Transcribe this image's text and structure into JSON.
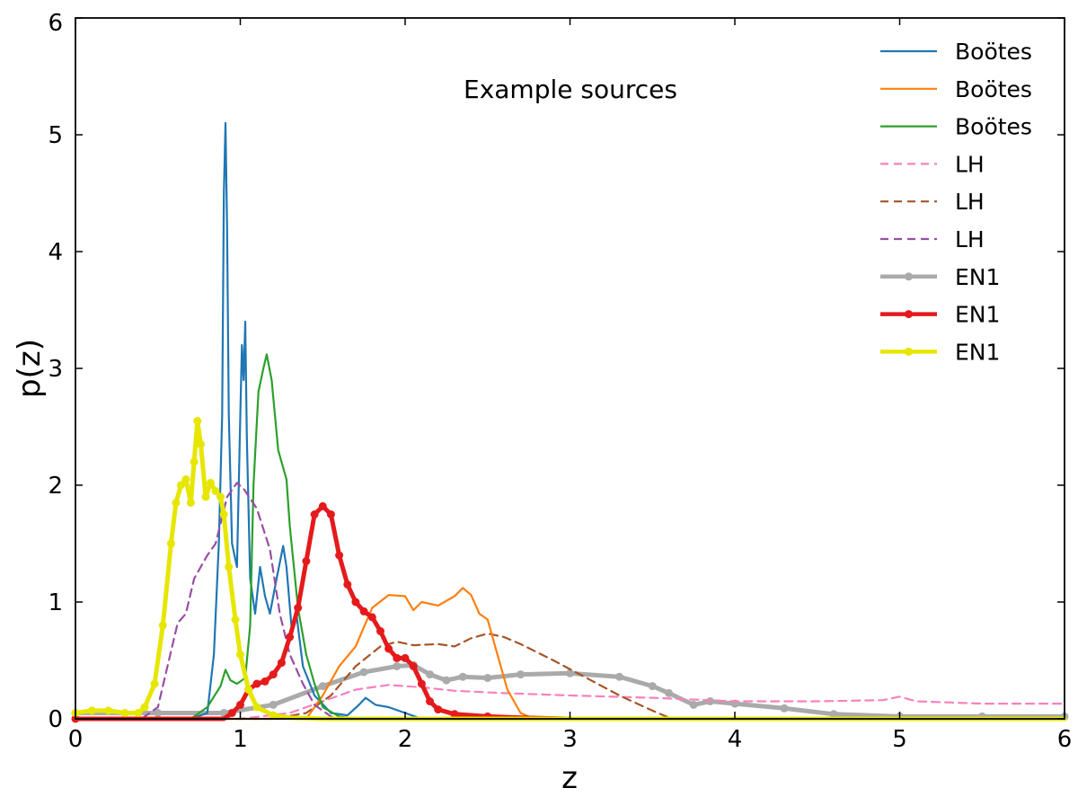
{
  "chart_data": {
    "type": "line",
    "title": "",
    "annotation": "Example sources",
    "xlabel": "z",
    "ylabel": "p(z)",
    "xlim": [
      0,
      6
    ],
    "ylim": [
      0,
      6
    ],
    "xticks": [
      "0",
      "1",
      "2",
      "3",
      "4",
      "5",
      "6"
    ],
    "yticks": [
      "0",
      "1",
      "2",
      "3",
      "4",
      "5",
      "6"
    ],
    "grid": false,
    "legend_position": "top-right",
    "series": [
      {
        "name": "Boötes",
        "color": "#1f77b4",
        "style": "solid",
        "marker": false,
        "points": [
          [
            0,
            0
          ],
          [
            0.7,
            0
          ],
          [
            0.8,
            0.05
          ],
          [
            0.84,
            0.55
          ],
          [
            0.87,
            1.5
          ],
          [
            0.89,
            2.6
          ],
          [
            0.9,
            4.5
          ],
          [
            0.91,
            5.1
          ],
          [
            0.92,
            4.2
          ],
          [
            0.93,
            2.6
          ],
          [
            0.95,
            1.5
          ],
          [
            0.98,
            1.3
          ],
          [
            1.0,
            2.6
          ],
          [
            1.01,
            3.2
          ],
          [
            1.02,
            2.9
          ],
          [
            1.03,
            3.4
          ],
          [
            1.04,
            2.4
          ],
          [
            1.06,
            1.2
          ],
          [
            1.09,
            0.9
          ],
          [
            1.12,
            1.3
          ],
          [
            1.15,
            1.05
          ],
          [
            1.18,
            0.9
          ],
          [
            1.22,
            1.2
          ],
          [
            1.26,
            1.48
          ],
          [
            1.28,
            1.3
          ],
          [
            1.31,
            0.8
          ],
          [
            1.34,
            0.9
          ],
          [
            1.38,
            0.45
          ],
          [
            1.45,
            0.2
          ],
          [
            1.55,
            0.05
          ],
          [
            1.65,
            0.03
          ],
          [
            1.72,
            0.12
          ],
          [
            1.76,
            0.18
          ],
          [
            1.82,
            0.12
          ],
          [
            1.9,
            0.1
          ],
          [
            2.0,
            0.05
          ],
          [
            2.1,
            0
          ],
          [
            6,
            0
          ]
        ]
      },
      {
        "name": "Boötes",
        "color": "#ff7f0e",
        "style": "solid",
        "marker": false,
        "points": [
          [
            0,
            0
          ],
          [
            1.4,
            0
          ],
          [
            1.5,
            0.2
          ],
          [
            1.6,
            0.45
          ],
          [
            1.7,
            0.62
          ],
          [
            1.8,
            0.95
          ],
          [
            1.9,
            1.06
          ],
          [
            2.0,
            1.05
          ],
          [
            2.05,
            0.93
          ],
          [
            2.1,
            1.0
          ],
          [
            2.2,
            0.97
          ],
          [
            2.3,
            1.05
          ],
          [
            2.35,
            1.12
          ],
          [
            2.4,
            1.06
          ],
          [
            2.45,
            0.9
          ],
          [
            2.5,
            0.85
          ],
          [
            2.55,
            0.6
          ],
          [
            2.62,
            0.25
          ],
          [
            2.7,
            0.05
          ],
          [
            2.78,
            0
          ],
          [
            6,
            0
          ]
        ]
      },
      {
        "name": "Boötes",
        "color": "#2ca02c",
        "style": "solid",
        "marker": false,
        "points": [
          [
            0,
            0
          ],
          [
            0.7,
            0
          ],
          [
            0.8,
            0.1
          ],
          [
            0.88,
            0.28
          ],
          [
            0.91,
            0.42
          ],
          [
            0.94,
            0.33
          ],
          [
            0.98,
            0.3
          ],
          [
            1.03,
            0.35
          ],
          [
            1.06,
            0.8
          ],
          [
            1.08,
            2.0
          ],
          [
            1.11,
            2.8
          ],
          [
            1.14,
            3.0
          ],
          [
            1.16,
            3.12
          ],
          [
            1.19,
            2.9
          ],
          [
            1.23,
            2.3
          ],
          [
            1.28,
            2.05
          ],
          [
            1.3,
            1.65
          ],
          [
            1.35,
            0.95
          ],
          [
            1.4,
            0.55
          ],
          [
            1.45,
            0.3
          ],
          [
            1.5,
            0.1
          ],
          [
            1.6,
            0.02
          ],
          [
            1.7,
            0
          ],
          [
            6,
            0
          ]
        ]
      },
      {
        "name": "LH",
        "color": "#f781bf",
        "style": "dashed",
        "marker": false,
        "points": [
          [
            0,
            0
          ],
          [
            1.0,
            0
          ],
          [
            1.3,
            0.05
          ],
          [
            1.5,
            0.15
          ],
          [
            1.7,
            0.25
          ],
          [
            1.9,
            0.29
          ],
          [
            2.1,
            0.27
          ],
          [
            2.3,
            0.24
          ],
          [
            2.6,
            0.22
          ],
          [
            3.0,
            0.2
          ],
          [
            3.5,
            0.18
          ],
          [
            4.0,
            0.15
          ],
          [
            4.5,
            0.15
          ],
          [
            4.9,
            0.16
          ],
          [
            5.0,
            0.19
          ],
          [
            5.1,
            0.15
          ],
          [
            5.5,
            0.13
          ],
          [
            6,
            0.13
          ]
        ]
      },
      {
        "name": "LH",
        "color": "#a65628",
        "style": "dashed",
        "marker": false,
        "points": [
          [
            0,
            0
          ],
          [
            1.2,
            0
          ],
          [
            1.4,
            0.05
          ],
          [
            1.55,
            0.2
          ],
          [
            1.7,
            0.45
          ],
          [
            1.85,
            0.62
          ],
          [
            1.95,
            0.66
          ],
          [
            2.05,
            0.63
          ],
          [
            2.2,
            0.64
          ],
          [
            2.3,
            0.62
          ],
          [
            2.4,
            0.69
          ],
          [
            2.5,
            0.73
          ],
          [
            2.6,
            0.7
          ],
          [
            2.7,
            0.64
          ],
          [
            2.9,
            0.5
          ],
          [
            3.1,
            0.35
          ],
          [
            3.3,
            0.2
          ],
          [
            3.5,
            0.07
          ],
          [
            3.6,
            0.01
          ],
          [
            3.7,
            0
          ],
          [
            6,
            0
          ]
        ]
      },
      {
        "name": "LH",
        "color": "#984ea3",
        "style": "dashed",
        "marker": false,
        "points": [
          [
            0,
            0
          ],
          [
            0.4,
            0
          ],
          [
            0.5,
            0.1
          ],
          [
            0.55,
            0.4
          ],
          [
            0.62,
            0.82
          ],
          [
            0.67,
            0.9
          ],
          [
            0.72,
            1.2
          ],
          [
            0.8,
            1.4
          ],
          [
            0.85,
            1.5
          ],
          [
            0.92,
            1.9
          ],
          [
            0.98,
            2.02
          ],
          [
            1.02,
            1.97
          ],
          [
            1.1,
            1.8
          ],
          [
            1.18,
            1.45
          ],
          [
            1.24,
            0.9
          ],
          [
            1.3,
            0.55
          ],
          [
            1.38,
            0.3
          ],
          [
            1.45,
            0.12
          ],
          [
            1.55,
            0.02
          ],
          [
            1.6,
            0
          ],
          [
            6,
            0
          ]
        ]
      },
      {
        "name": "EN1",
        "color": "#aaaaaa",
        "style": "solid",
        "marker": true,
        "points": [
          [
            0,
            0.05
          ],
          [
            0.5,
            0.05
          ],
          [
            0.9,
            0.05
          ],
          [
            1.2,
            0.12
          ],
          [
            1.5,
            0.28
          ],
          [
            1.75,
            0.4
          ],
          [
            1.95,
            0.45
          ],
          [
            2.05,
            0.46
          ],
          [
            2.15,
            0.38
          ],
          [
            2.25,
            0.33
          ],
          [
            2.35,
            0.36
          ],
          [
            2.5,
            0.35
          ],
          [
            2.7,
            0.38
          ],
          [
            3.0,
            0.39
          ],
          [
            3.3,
            0.36
          ],
          [
            3.5,
            0.28
          ],
          [
            3.6,
            0.22
          ],
          [
            3.75,
            0.12
          ],
          [
            3.85,
            0.15
          ],
          [
            4.0,
            0.13
          ],
          [
            4.3,
            0.09
          ],
          [
            4.6,
            0.04
          ],
          [
            5.0,
            0.02
          ],
          [
            5.5,
            0.02
          ],
          [
            6,
            0.02
          ]
        ]
      },
      {
        "name": "EN1",
        "color": "#e41a1c",
        "style": "solid",
        "marker": true,
        "points": [
          [
            0,
            0
          ],
          [
            0.9,
            0
          ],
          [
            0.95,
            0.05
          ],
          [
            1.0,
            0.12
          ],
          [
            1.05,
            0.25
          ],
          [
            1.1,
            0.3
          ],
          [
            1.15,
            0.32
          ],
          [
            1.2,
            0.38
          ],
          [
            1.25,
            0.48
          ],
          [
            1.3,
            0.7
          ],
          [
            1.35,
            0.95
          ],
          [
            1.4,
            1.35
          ],
          [
            1.45,
            1.75
          ],
          [
            1.5,
            1.82
          ],
          [
            1.55,
            1.75
          ],
          [
            1.6,
            1.4
          ],
          [
            1.65,
            1.15
          ],
          [
            1.7,
            1.0
          ],
          [
            1.75,
            0.92
          ],
          [
            1.8,
            0.87
          ],
          [
            1.85,
            0.75
          ],
          [
            1.9,
            0.6
          ],
          [
            1.95,
            0.52
          ],
          [
            2.0,
            0.52
          ],
          [
            2.05,
            0.45
          ],
          [
            2.1,
            0.3
          ],
          [
            2.15,
            0.15
          ],
          [
            2.2,
            0.08
          ],
          [
            2.3,
            0.04
          ],
          [
            2.5,
            0.02
          ],
          [
            2.7,
            0.01
          ],
          [
            3.0,
            0
          ],
          [
            6,
            0
          ]
        ]
      },
      {
        "name": "EN1",
        "color": "#e6e600",
        "style": "solid",
        "marker": true,
        "points": [
          [
            0,
            0.05
          ],
          [
            0.1,
            0.07
          ],
          [
            0.2,
            0.07
          ],
          [
            0.3,
            0.05
          ],
          [
            0.38,
            0.05
          ],
          [
            0.42,
            0.1
          ],
          [
            0.48,
            0.3
          ],
          [
            0.53,
            0.8
          ],
          [
            0.58,
            1.5
          ],
          [
            0.61,
            1.85
          ],
          [
            0.64,
            2.0
          ],
          [
            0.67,
            2.05
          ],
          [
            0.7,
            1.85
          ],
          [
            0.72,
            2.2
          ],
          [
            0.74,
            2.55
          ],
          [
            0.76,
            2.35
          ],
          [
            0.79,
            1.9
          ],
          [
            0.82,
            2.02
          ],
          [
            0.85,
            1.95
          ],
          [
            0.88,
            1.9
          ],
          [
            0.9,
            1.75
          ],
          [
            0.93,
            1.3
          ],
          [
            0.97,
            0.85
          ],
          [
            1.0,
            0.55
          ],
          [
            1.05,
            0.25
          ],
          [
            1.1,
            0.1
          ],
          [
            1.2,
            0.03
          ],
          [
            1.3,
            0.01
          ],
          [
            1.5,
            0
          ],
          [
            6,
            0
          ]
        ]
      }
    ]
  }
}
